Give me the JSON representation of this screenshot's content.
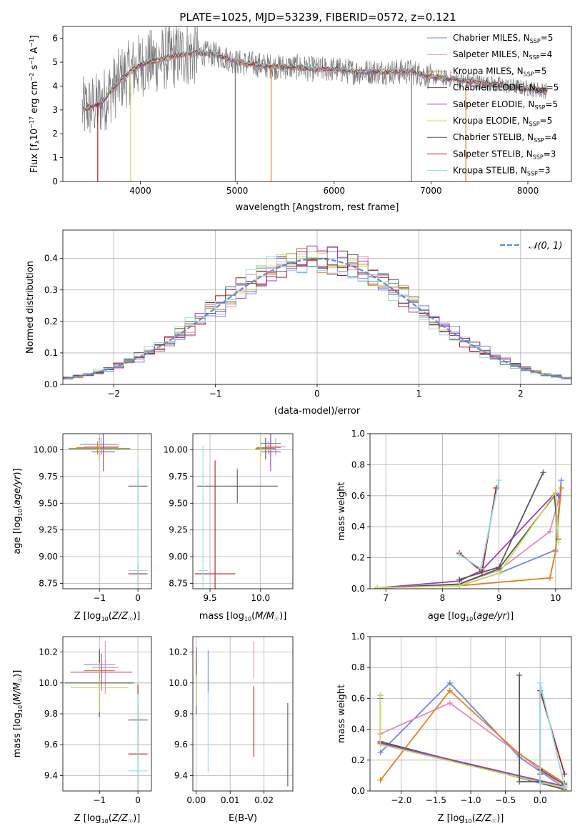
{
  "title": "PLATE=1025, MJD=53239, FIBERID=0572, z=0.121",
  "colors": {
    "Chabrier MILES": "#6a89e6",
    "Salpeter MILES": "#e58abf",
    "Kroupa MILES": "#e87e1e",
    "Chabrier ELODIE": "#555555",
    "Salpeter ELODIE": "#9b3fc2",
    "Kroupa ELODIE": "#c2e05a",
    "Chabrier STELIB": "#5a5a5a",
    "Salpeter STELIB": "#b01e22",
    "Kroupa STELIB": "#8ce0e6"
  },
  "chart_data": [
    {
      "id": "spectrum",
      "type": "line",
      "title": "PLATE=1025, MJD=53239, FIBERID=0572, z=0.121",
      "xlabel": "wavelength [Angstrom, rest frame]",
      "ylabel": "Flux [fλ10⁻¹⁷ erg cm⁻² s⁻¹ A⁻¹]",
      "xlim": [
        3200,
        8450
      ],
      "ylim": [
        0,
        6.5
      ],
      "xticks": [
        4000,
        5000,
        6000,
        7000,
        8000
      ],
      "yticks": [
        0,
        1,
        2,
        3,
        4,
        5,
        6
      ],
      "grid": false,
      "legend_position": "top-right",
      "series": [
        {
          "name": "Chabrier MILES, NSSP=5",
          "legend": "Chabrier MILES, N",
          "sub": "SSP",
          "tail": "=5"
        },
        {
          "name": "Salpeter MILES, NSSP=4",
          "legend": "Salpeter MILES, N",
          "sub": "SSP",
          "tail": "=4"
        },
        {
          "name": "Kroupa MILES, NSSP=5",
          "legend": "Kroupa MILES, N",
          "sub": "SSP",
          "tail": "=5"
        },
        {
          "name": "Chabrier ELODIE, NSSP=5",
          "legend": "Chabrier ELODIE, N",
          "sub": "SSP",
          "tail": "=5"
        },
        {
          "name": "Salpeter ELODIE, NSSP=5",
          "legend": "Salpeter ELODIE, N",
          "sub": "SSP",
          "tail": "=5"
        },
        {
          "name": "Kroupa ELODIE, NSSP=5",
          "legend": "Kroupa ELODIE, N",
          "sub": "SSP",
          "tail": "=5"
        },
        {
          "name": "Chabrier STELIB, NSSP=4",
          "legend": "Chabrier STELIB, N",
          "sub": "SSP",
          "tail": "=4"
        },
        {
          "name": "Salpeter STELIB, NSSP=3",
          "legend": "Salpeter STELIB, N",
          "sub": "SSP",
          "tail": "=3"
        },
        {
          "name": "Kroupa STELIB, NSSP=3",
          "legend": "Kroupa STELIB, N",
          "sub": "SSP",
          "tail": "=3"
        }
      ],
      "continuum": {
        "x": [
          3400,
          3600,
          3800,
          4000,
          4200,
          4400,
          4600,
          4800,
          5000,
          5200,
          5400,
          5600,
          5800,
          6000,
          6200,
          6400,
          6600,
          6800,
          7000,
          7200,
          7400,
          7600,
          7800,
          8000,
          8200
        ],
        "y": [
          3.0,
          3.3,
          4.3,
          4.9,
          5.1,
          5.3,
          5.4,
          5.3,
          5.0,
          4.9,
          4.8,
          4.8,
          4.7,
          4.7,
          4.6,
          4.6,
          4.6,
          4.6,
          4.4,
          4.3,
          4.2,
          4.1,
          4.0,
          3.9,
          3.8
        ]
      },
      "dips": [
        [
          3560,
          0
        ],
        [
          3900,
          0
        ],
        [
          4980,
          0
        ],
        [
          5350,
          0
        ],
        [
          6800,
          0
        ],
        [
          7360,
          0
        ]
      ]
    },
    {
      "id": "residuals",
      "type": "histogram",
      "xlabel": "(data-model)/error",
      "ylabel": "Normed distribution",
      "xlim": [
        -2.5,
        2.5
      ],
      "ylim": [
        0,
        0.49
      ],
      "xticks": [
        -2,
        -1,
        0,
        1,
        2
      ],
      "yticks": [
        0.0,
        0.1,
        0.2,
        0.3,
        0.4
      ],
      "grid": true,
      "legend_position": "top-right",
      "reference": {
        "name": "N(0,1)",
        "legend": "𝒩(0, 1)",
        "mu": 0,
        "sigma": 1
      },
      "bin_width": 0.1
    },
    {
      "id": "age-vs-Z",
      "type": "errorbar",
      "xlabel": "Z [log10(Z/Z☉)]",
      "ylabel": "age [log10(age/yr)]",
      "xlim": [
        -1.95,
        0.35
      ],
      "ylim": [
        8.7,
        10.15
      ],
      "xticks": [
        -1,
        0
      ],
      "yticks": [
        8.75,
        9.0,
        9.25,
        9.5,
        9.75,
        10.0
      ],
      "grid": true,
      "points": [
        {
          "series": "Chabrier MILES",
          "x": -1.0,
          "y": 10.05,
          "xerr": 0.5,
          "yerr": 0.05
        },
        {
          "series": "Salpeter MILES",
          "x": -0.95,
          "y": 10.03,
          "xerr": 0.45,
          "yerr": 0.08
        },
        {
          "series": "Kroupa MILES",
          "x": -1.05,
          "y": 10.02,
          "xerr": 0.55,
          "yerr": 0.06
        },
        {
          "series": "Chabrier ELODIE",
          "x": -1.0,
          "y": 10.01,
          "xerr": 0.8,
          "yerr": 0.1
        },
        {
          "series": "Salpeter ELODIE",
          "x": -0.9,
          "y": 9.98,
          "xerr": 0.3,
          "yerr": 0.18
        },
        {
          "series": "Kroupa ELODIE",
          "x": -1.0,
          "y": 10.0,
          "xerr": 0.8,
          "yerr": 0.1
        },
        {
          "series": "Chabrier STELIB",
          "x": 0.0,
          "y": 9.66,
          "xerr": 0.25,
          "yerr": 0.16
        },
        {
          "series": "Salpeter STELIB",
          "x": 0.0,
          "y": 8.84,
          "xerr": 0.25,
          "yerr": 0.1
        },
        {
          "series": "Kroupa STELIB",
          "x": 0.0,
          "y": 8.87,
          "xerr": 0.25,
          "yerr": 1.03
        }
      ]
    },
    {
      "id": "age-vs-mass",
      "type": "errorbar",
      "xlabel": "mass [log10(M/M☉)]",
      "ylabel": "",
      "xlim": [
        9.33,
        10.32
      ],
      "ylim": [
        8.7,
        10.15
      ],
      "xticks": [
        9.5,
        10.0
      ],
      "yticks": [
        8.75,
        9.0,
        9.25,
        9.5,
        9.75,
        10.0
      ],
      "grid": true,
      "points": [
        {
          "series": "Chabrier MILES",
          "x": 10.1,
          "y": 10.06,
          "xerr": 0.1,
          "yerr": 0.05
        },
        {
          "series": "Salpeter MILES",
          "x": 10.15,
          "y": 10.03,
          "xerr": 0.1,
          "yerr": 0.08
        },
        {
          "series": "Kroupa MILES",
          "x": 10.08,
          "y": 10.02,
          "xerr": 0.12,
          "yerr": 0.06
        },
        {
          "series": "Chabrier ELODIE",
          "x": 10.05,
          "y": 10.01,
          "xerr": 0.1,
          "yerr": 0.1
        },
        {
          "series": "Salpeter ELODIE",
          "x": 10.1,
          "y": 9.98,
          "xerr": 0.1,
          "yerr": 0.18
        },
        {
          "series": "Kroupa ELODIE",
          "x": 10.0,
          "y": 10.0,
          "xerr": 0.12,
          "yerr": 0.1
        },
        {
          "series": "Chabrier STELIB",
          "x": 9.77,
          "y": 9.66,
          "xerr": 0.4,
          "yerr": 0.16
        },
        {
          "series": "Salpeter STELIB",
          "x": 9.55,
          "y": 8.84,
          "xerr": 0.2,
          "yerr": 1.06
        },
        {
          "series": "Kroupa STELIB",
          "x": 9.43,
          "y": 8.87,
          "xerr": 0.05,
          "yerr": 1.17
        }
      ]
    },
    {
      "id": "weight-vs-age",
      "type": "line",
      "xlabel": "age [log10(age/yr)]",
      "ylabel": "mass weight",
      "xlim": [
        6.72,
        10.28
      ],
      "ylim": [
        0,
        1.0
      ],
      "xticks": [
        7,
        8,
        9,
        10
      ],
      "yticks": [
        0.0,
        0.2,
        0.4,
        0.6,
        0.8,
        1.0
      ],
      "grid": true,
      "series": [
        {
          "name": "Chabrier MILES",
          "x": [
            6.85,
            8.3,
            9.0,
            10.0,
            10.1
          ],
          "y": [
            0.005,
            0.02,
            0.1,
            0.25,
            0.7
          ]
        },
        {
          "name": "Salpeter MILES",
          "x": [
            6.85,
            8.3,
            9.0,
            9.9,
            10.05
          ],
          "y": [
            0.005,
            0.03,
            0.12,
            0.37,
            0.57
          ]
        },
        {
          "name": "Kroupa MILES",
          "x": [
            6.85,
            8.3,
            9.9,
            10.0,
            10.1
          ],
          "y": [
            0.005,
            0.02,
            0.07,
            0.24,
            0.65
          ]
        },
        {
          "name": "Chabrier ELODIE",
          "x": [
            6.85,
            8.3,
            9.0,
            9.98,
            10.05
          ],
          "y": [
            0.005,
            0.03,
            0.13,
            0.6,
            0.32
          ]
        },
        {
          "name": "Salpeter ELODIE",
          "x": [
            6.85,
            8.3,
            8.7,
            10.0,
            10.05
          ],
          "y": [
            0.005,
            0.05,
            0.12,
            0.62,
            0.6
          ]
        },
        {
          "name": "Kroupa ELODIE",
          "x": [
            6.85,
            8.3,
            9.0,
            10.0,
            10.05
          ],
          "y": [
            0.005,
            0.02,
            0.1,
            0.62,
            0.3
          ]
        },
        {
          "name": "Chabrier STELIB",
          "x": [
            8.3,
            9.0,
            9.78
          ],
          "y": [
            0.06,
            0.14,
            0.75
          ]
        },
        {
          "name": "Salpeter STELIB",
          "x": [
            8.3,
            8.7,
            8.95
          ],
          "y": [
            0.23,
            0.11,
            0.65
          ]
        },
        {
          "name": "Kroupa STELIB",
          "x": [
            8.3,
            8.68,
            9.0
          ],
          "y": [
            0.22,
            0.13,
            0.7
          ]
        }
      ]
    },
    {
      "id": "mass-vs-Z",
      "type": "errorbar",
      "xlabel": "Z [log10(Z/Z☉)]",
      "ylabel": "mass [log10(M/M☉)]",
      "xlim": [
        -1.95,
        0.35
      ],
      "ylim": [
        9.3,
        10.3
      ],
      "xticks": [
        -1,
        0
      ],
      "yticks": [
        9.4,
        9.6,
        9.8,
        10.0,
        10.2
      ],
      "grid": true,
      "points": [
        {
          "series": "Chabrier MILES",
          "x": -1.0,
          "y": 10.12,
          "xerr": 0.4,
          "yerr": 0.08
        },
        {
          "series": "Salpeter MILES",
          "x": -0.85,
          "y": 10.1,
          "xerr": 0.35,
          "yerr": 0.17
        },
        {
          "series": "Kroupa MILES",
          "x": -1.0,
          "y": 10.08,
          "xerr": 0.4,
          "yerr": 0.1
        },
        {
          "series": "Chabrier ELODIE",
          "x": -1.0,
          "y": 10.0,
          "xerr": 0.9,
          "yerr": 0.22
        },
        {
          "series": "Salpeter ELODIE",
          "x": -0.95,
          "y": 10.07,
          "xerr": 0.8,
          "yerr": 0.12
        },
        {
          "series": "Kroupa ELODIE",
          "x": -1.0,
          "y": 9.97,
          "xerr": 0.75,
          "yerr": 0.16
        },
        {
          "series": "Chabrier STELIB",
          "x": 0.0,
          "y": 9.76,
          "xerr": 0.25,
          "yerr": 0.1
        },
        {
          "series": "Salpeter STELIB",
          "x": 0.0,
          "y": 9.54,
          "xerr": 0.25,
          "yerr": 0.45
        },
        {
          "series": "Kroupa STELIB",
          "x": 0.0,
          "y": 9.43,
          "xerr": 0.25,
          "yerr": 0.5
        }
      ]
    },
    {
      "id": "mass-vs-ebv",
      "type": "errorbar",
      "xlabel": "E(B-V)",
      "ylabel": "",
      "xlim": [
        -0.001,
        0.0285
      ],
      "ylim": [
        9.3,
        10.3
      ],
      "xticks": [
        0.0,
        0.01,
        0.02
      ],
      "yticks": [
        9.4,
        9.6,
        9.8,
        10.0,
        10.2
      ],
      "grid": true,
      "points": [
        {
          "series": "Chabrier MILES",
          "x": 0.0035,
          "y": 10.07,
          "xerr": 0,
          "yerr": 0.14
        },
        {
          "series": "Salpeter MILES",
          "x": 0.017,
          "y": 10.15,
          "xerr": 0,
          "yerr": 0.12
        },
        {
          "series": "Kroupa MILES",
          "x": 0.0,
          "y": 10.05,
          "xerr": 0,
          "yerr": 0.1
        },
        {
          "series": "Chabrier ELODIE",
          "x": 0.0,
          "y": 10.0,
          "xerr": 0,
          "yerr": 0.2
        },
        {
          "series": "Salpeter ELODIE",
          "x": 0.0,
          "y": 10.2,
          "xerr": 0,
          "yerr": 0.03
        },
        {
          "series": "Kroupa ELODIE",
          "x": 0.0,
          "y": 9.95,
          "xerr": 0,
          "yerr": 0.1
        },
        {
          "series": "Chabrier STELIB",
          "x": 0.027,
          "y": 9.6,
          "xerr": 0,
          "yerr": 0.27
        },
        {
          "series": "Salpeter STELIB",
          "x": 0.017,
          "y": 9.75,
          "xerr": 0,
          "yerr": 0.23
        },
        {
          "series": "Kroupa STELIB",
          "x": 0.0035,
          "y": 9.68,
          "xerr": 0,
          "yerr": 0.26
        }
      ]
    },
    {
      "id": "weight-vs-Z",
      "type": "line",
      "xlabel": "Z [log10(Z/Z☉)]",
      "ylabel": "mass weight",
      "xlim": [
        -2.45,
        0.45
      ],
      "ylim": [
        0,
        1.0
      ],
      "xticks": [
        -2.0,
        -1.5,
        -1.0,
        -0.5,
        0.0
      ],
      "yticks": [
        0.0,
        0.2,
        0.4,
        0.6,
        0.8,
        1.0
      ],
      "grid": true,
      "series": [
        {
          "name": "Chabrier MILES",
          "x": [
            -2.3,
            -1.3,
            -0.3,
            0.35,
            -2.3
          ],
          "y": [
            0.25,
            0.7,
            0.22,
            0.02,
            0.31
          ]
        },
        {
          "name": "Salpeter MILES",
          "x": [
            -2.3,
            -1.3,
            -0.3,
            0.35
          ],
          "y": [
            0.37,
            0.57,
            0.24,
            0.02
          ]
        },
        {
          "name": "Kroupa MILES",
          "x": [
            -2.3,
            -1.3,
            -0.3,
            0.35
          ],
          "y": [
            0.07,
            0.65,
            0.24,
            0.05
          ]
        },
        {
          "name": "Chabrier ELODIE",
          "x": [
            -2.3,
            -2.3,
            0.35,
            0.35
          ],
          "y": [
            0.62,
            0.32,
            0.01,
            0.04
          ]
        },
        {
          "name": "Salpeter ELODIE",
          "x": [
            -2.3,
            -2.3,
            0.35
          ],
          "y": [
            0.6,
            0.31,
            0.03
          ]
        },
        {
          "name": "Kroupa ELODIE",
          "x": [
            -2.3,
            -2.3,
            0.35
          ],
          "y": [
            0.62,
            0.3,
            0.02
          ]
        },
        {
          "name": "Chabrier STELIB",
          "x": [
            -0.3,
            -0.3,
            0.0,
            0.0,
            0.35
          ],
          "y": [
            0.75,
            0.06,
            0.06,
            0.14,
            0.04
          ]
        },
        {
          "name": "Salpeter STELIB",
          "x": [
            0.0,
            0.0,
            0.35
          ],
          "y": [
            0.11,
            0.65,
            0.11
          ]
        },
        {
          "name": "Kroupa STELIB",
          "x": [
            0.0,
            0.0,
            0.35
          ],
          "y": [
            0.05,
            0.7,
            0.03
          ]
        }
      ]
    }
  ]
}
